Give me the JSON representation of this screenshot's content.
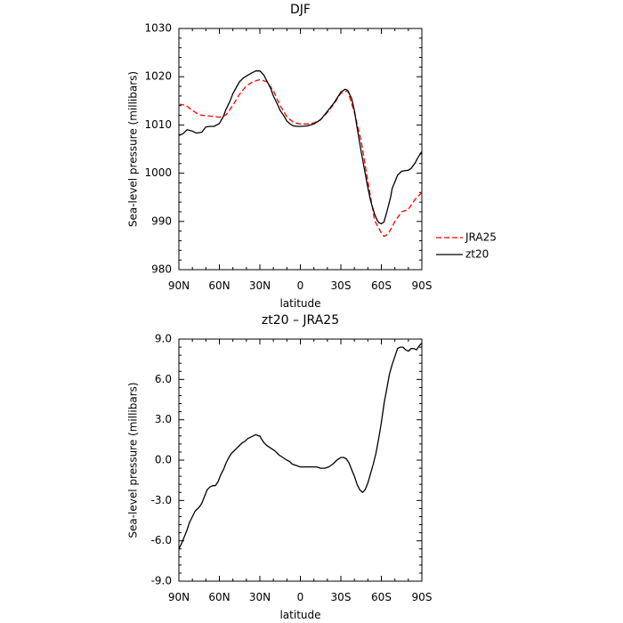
{
  "chart_data": [
    {
      "type": "line",
      "title": "DJF",
      "xlabel": "latitude",
      "ylabel": "Sea-level pressure (millibars)",
      "ylim": [
        980,
        1030
      ],
      "yticks": [
        980,
        990,
        1000,
        1010,
        1020,
        1030
      ],
      "xticks": [
        "90N",
        "60N",
        "30N",
        "0",
        "30S",
        "60S",
        "90S"
      ],
      "legend_position": "right",
      "series": [
        {
          "name": "JRA25",
          "color": "#ff0000",
          "dash": "dashed",
          "x": [
            90,
            85,
            80,
            75,
            70,
            65,
            60,
            55,
            50,
            45,
            40,
            35,
            30,
            25,
            20,
            15,
            10,
            5,
            0,
            -5,
            -10,
            -15,
            -20,
            -25,
            -30,
            -35,
            -40,
            -45,
            -50,
            -55,
            -60,
            -62,
            -65,
            -68,
            -70,
            -75,
            -80,
            -85,
            -90
          ],
          "values": [
            1014.3,
            1014.1,
            1013.0,
            1012.1,
            1011.9,
            1011.8,
            1011.6,
            1012.1,
            1014.1,
            1016.4,
            1018.1,
            1019.0,
            1019.4,
            1019.0,
            1017.1,
            1014.0,
            1011.7,
            1010.5,
            1010.2,
            1010.2,
            1010.4,
            1011.1,
            1012.6,
            1014.4,
            1016.6,
            1017.1,
            1012.6,
            1006.7,
            998.4,
            990.2,
            987.6,
            986.9,
            987.4,
            988.9,
            990.0,
            992.0,
            992.5,
            994.6,
            996.0
          ]
        },
        {
          "name": "zt20",
          "color": "#000000",
          "dash": "solid",
          "x": [
            90,
            87,
            84,
            80,
            77,
            73,
            70,
            67,
            64,
            60,
            57,
            55,
            52,
            50,
            47,
            45,
            42,
            39,
            36,
            33,
            30,
            27,
            25,
            22,
            20,
            17,
            15,
            12,
            10,
            7,
            5,
            2,
            0,
            -5,
            -10,
            -15,
            -20,
            -25,
            -30,
            -33,
            -35,
            -38,
            -40,
            -42,
            -45,
            -48,
            -50,
            -52,
            -55,
            -57,
            -58,
            -60,
            -62,
            -63,
            -65,
            -67,
            -68,
            -70,
            -72,
            -75,
            -77,
            -80,
            -82,
            -85,
            -87,
            -90
          ],
          "values": [
            1007.8,
            1008.2,
            1009.0,
            1008.7,
            1008.3,
            1008.5,
            1009.6,
            1009.7,
            1009.7,
            1010.3,
            1011.8,
            1013.3,
            1015.0,
            1016.5,
            1018.0,
            1019.0,
            1019.8,
            1020.3,
            1020.8,
            1021.2,
            1021.2,
            1020.3,
            1019.2,
            1017.6,
            1016.0,
            1014.3,
            1013.0,
            1011.8,
            1010.8,
            1010.1,
            1009.8,
            1009.7,
            1009.7,
            1009.8,
            1010.2,
            1011.1,
            1012.8,
            1014.6,
            1016.8,
            1017.4,
            1017.2,
            1015.5,
            1013.0,
            1009.5,
            1004.5,
            1000.0,
            997.0,
            994.3,
            991.5,
            990.2,
            989.8,
            989.5,
            989.9,
            990.9,
            993.0,
            995.2,
            996.8,
            998.2,
            999.6,
            1000.4,
            1000.5,
            1000.6,
            1001.0,
            1002.1,
            1003.2,
            1004.5
          ]
        }
      ]
    },
    {
      "type": "line",
      "title": "zt20 – JRA25",
      "xlabel": "latitude",
      "ylabel": "Sea-level pressure (millibars)",
      "ylim": [
        -9.0,
        9.0
      ],
      "yticks": [
        "-9.0",
        "-6.0",
        "-3.0",
        "0.0",
        "3.0",
        "6.0",
        "9.0"
      ],
      "ytick_values": [
        -9,
        -6,
        -3,
        0,
        3,
        6,
        9
      ],
      "xticks": [
        "90N",
        "60N",
        "30N",
        "0",
        "30S",
        "60S",
        "90S"
      ],
      "series": [
        {
          "color": "#000000",
          "dash": "solid",
          "x": [
            90,
            88,
            86,
            84,
            82,
            80,
            78,
            75,
            73,
            71,
            69,
            67,
            65,
            63,
            61,
            59,
            57,
            55,
            53,
            51,
            49,
            47,
            45,
            43,
            41,
            39,
            37,
            35,
            33,
            31,
            30,
            29,
            27,
            25,
            22,
            19,
            16,
            13,
            10,
            8,
            6,
            3,
            0,
            -3,
            -6,
            -9,
            -12,
            -15,
            -18,
            -21,
            -24,
            -27,
            -30,
            -32,
            -34,
            -36,
            -38,
            -40,
            -42,
            -44,
            -46,
            -48,
            -50,
            -52,
            -54,
            -56,
            -58,
            -60,
            -62,
            -64,
            -66,
            -68,
            -70,
            -72,
            -74,
            -76,
            -78,
            -80,
            -82,
            -84,
            -86,
            -88,
            -90
          ],
          "values": [
            -6.6,
            -6.2,
            -5.7,
            -5.2,
            -4.6,
            -4.2,
            -3.8,
            -3.5,
            -3.2,
            -2.7,
            -2.2,
            -2.0,
            -1.9,
            -1.9,
            -1.6,
            -1.1,
            -0.7,
            -0.2,
            0.2,
            0.5,
            0.7,
            0.9,
            1.1,
            1.3,
            1.4,
            1.6,
            1.7,
            1.8,
            1.9,
            1.8,
            1.8,
            1.6,
            1.3,
            1.1,
            0.9,
            0.7,
            0.4,
            0.2,
            0.0,
            -0.1,
            -0.3,
            -0.4,
            -0.5,
            -0.5,
            -0.5,
            -0.5,
            -0.5,
            -0.6,
            -0.6,
            -0.5,
            -0.3,
            0.0,
            0.2,
            0.2,
            0.1,
            -0.2,
            -0.7,
            -1.2,
            -1.8,
            -2.2,
            -2.4,
            -2.2,
            -1.7,
            -1.0,
            -0.3,
            0.5,
            1.6,
            2.8,
            4.2,
            5.3,
            6.4,
            7.1,
            7.7,
            8.3,
            8.4,
            8.4,
            8.2,
            8.1,
            8.3,
            8.3,
            8.2,
            8.5,
            8.7
          ]
        }
      ]
    }
  ]
}
